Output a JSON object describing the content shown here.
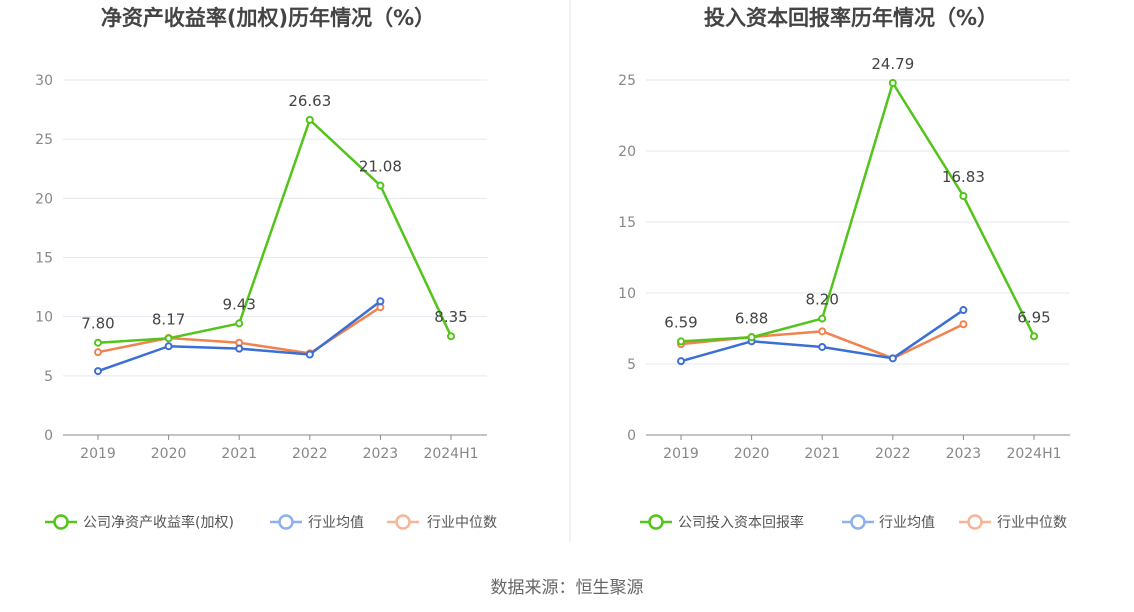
{
  "source": "数据来源：恒生聚源",
  "chart_data": [
    {
      "type": "line",
      "title": "净资产收益率(加权)历年情况（%）",
      "categories": [
        "2019",
        "2020",
        "2021",
        "2022",
        "2023",
        "2024H1"
      ],
      "ylim": [
        0,
        30
      ],
      "yticks": [
        0,
        5,
        10,
        15,
        20,
        25,
        30
      ],
      "grid": true,
      "legend_position": "bottom",
      "series": [
        {
          "name": "公司净资产收益率(加权)",
          "color": "#52c41a",
          "values": [
            7.8,
            8.17,
            9.43,
            26.63,
            21.08,
            8.35
          ],
          "labels": [
            "7.80",
            "8.17",
            "9.43",
            "26.63",
            "21.08",
            "8.35"
          ]
        },
        {
          "name": "行业均值",
          "color": "#3b6fd6",
          "values": [
            5.4,
            7.5,
            7.3,
            6.8,
            11.3,
            null
          ]
        },
        {
          "name": "行业中位数",
          "color": "#f0834f",
          "values": [
            7.0,
            8.2,
            7.8,
            6.9,
            10.8,
            null
          ]
        }
      ]
    },
    {
      "type": "line",
      "title": "投入资本回报率历年情况（%）",
      "categories": [
        "2019",
        "2020",
        "2021",
        "2022",
        "2023",
        "2024H1"
      ],
      "ylim": [
        0,
        25
      ],
      "yticks": [
        0,
        5,
        10,
        15,
        20,
        25
      ],
      "grid": true,
      "legend_position": "bottom",
      "series": [
        {
          "name": "公司投入资本回报率",
          "color": "#52c41a",
          "values": [
            6.59,
            6.88,
            8.2,
            24.79,
            16.83,
            6.95
          ],
          "labels": [
            "6.59",
            "6.88",
            "8.20",
            "24.79",
            "16.83",
            "6.95"
          ]
        },
        {
          "name": "行业均值",
          "color": "#3b6fd6",
          "values": [
            5.2,
            6.6,
            6.2,
            5.4,
            8.8,
            null
          ]
        },
        {
          "name": "行业中位数",
          "color": "#f0834f",
          "values": [
            6.4,
            6.9,
            7.3,
            5.4,
            7.8,
            null
          ]
        }
      ]
    }
  ]
}
